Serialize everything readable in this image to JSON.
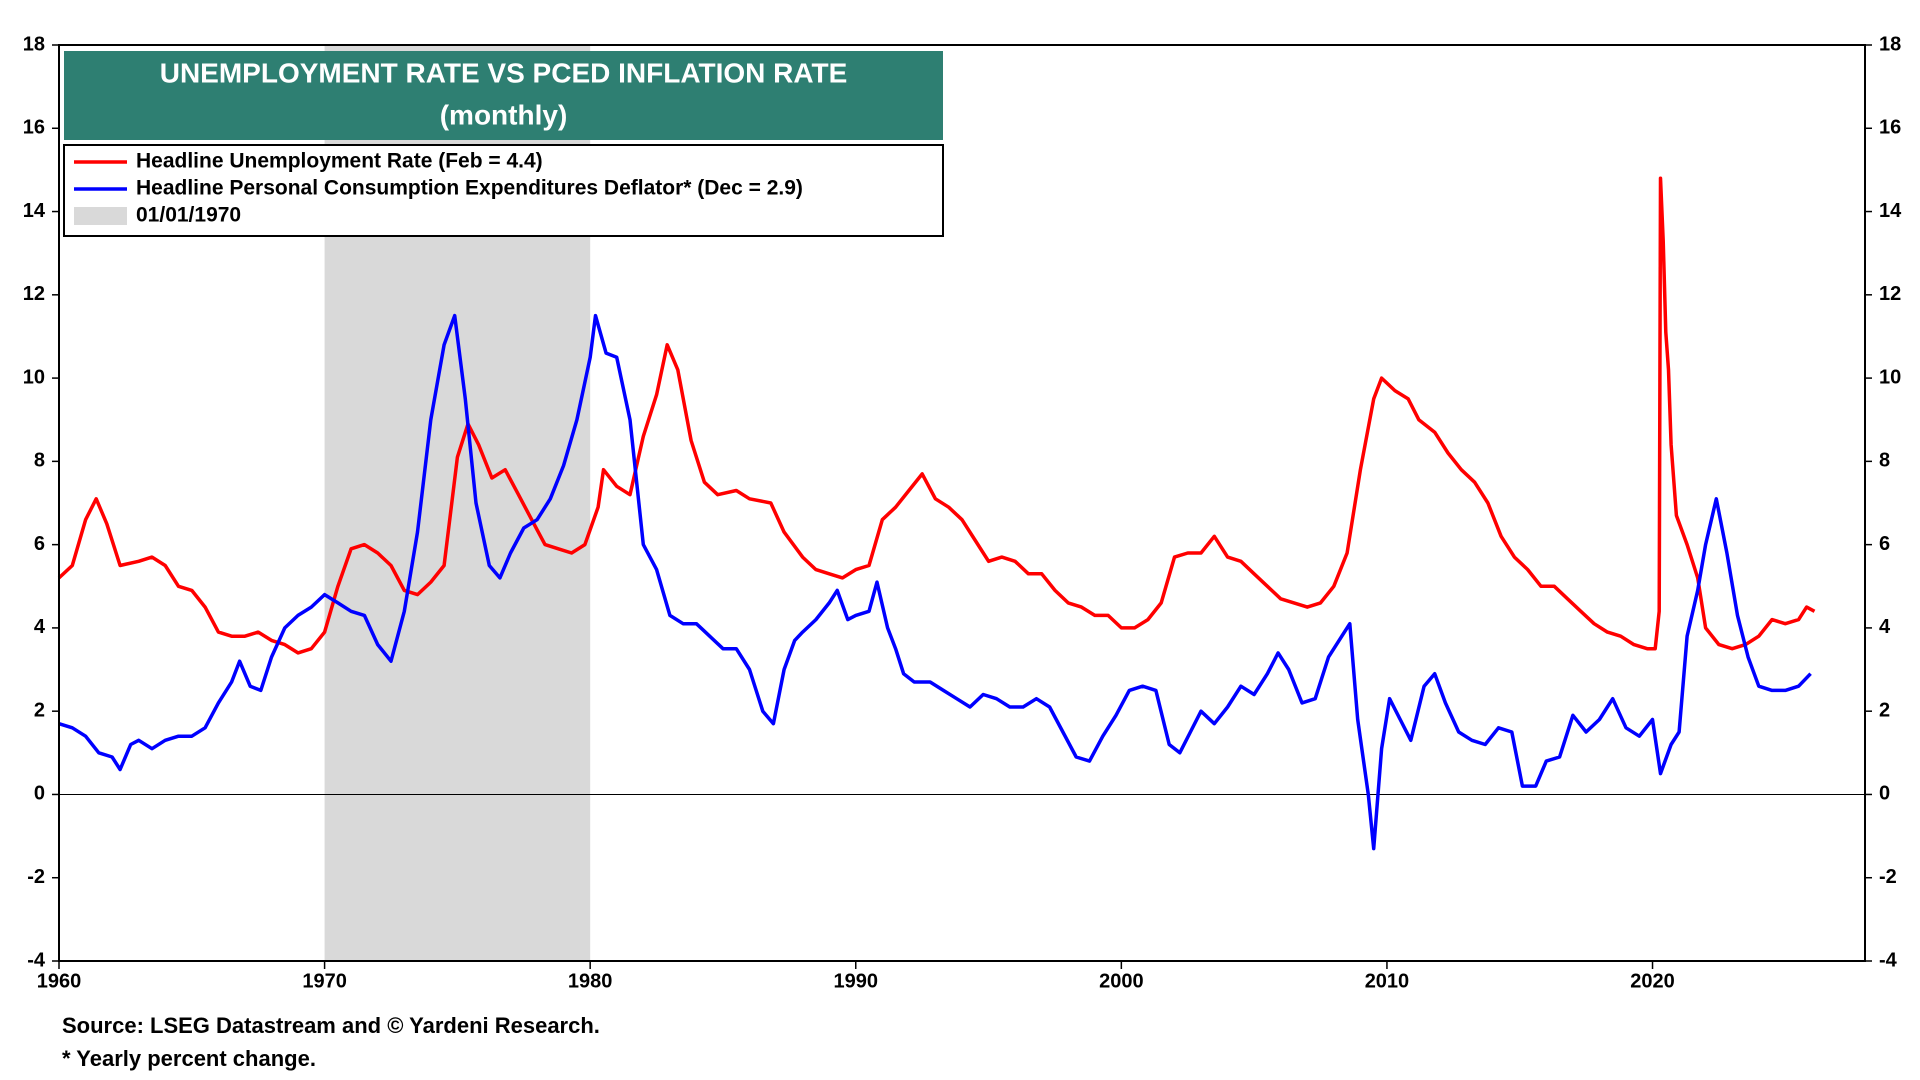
{
  "chart_data": {
    "type": "line",
    "title": "UNEMPLOYMENT RATE VS PCED INFLATION RATE",
    "subtitle": "(monthly)",
    "source": "Source: LSEG Datastream and © Yardeni Research.",
    "note": "* Yearly percent change.",
    "xlim": [
      1960,
      2028
    ],
    "xticks": [
      1960,
      1970,
      1980,
      1990,
      2000,
      2010,
      2020
    ],
    "ylim": [
      -4,
      18
    ],
    "yticks": [
      -4,
      -2,
      0,
      2,
      4,
      6,
      8,
      10,
      12,
      14,
      16,
      18
    ],
    "shaded": {
      "start": 1970,
      "end": 1980,
      "label": "01/01/1970",
      "color": "#d9d9d9"
    },
    "series": [
      {
        "name": "Headline Unemployment Rate (Feb = 4.4)",
        "color": "#ff0000",
        "x": [
          1960,
          1960.5,
          1961,
          1961.4,
          1961.8,
          1962.3,
          1963,
          1963.5,
          1964,
          1964.5,
          1965,
          1965.5,
          1966,
          1966.5,
          1967,
          1967.5,
          1968,
          1968.5,
          1969,
          1969.5,
          1970,
          1970.5,
          1971,
          1971.5,
          1972,
          1972.5,
          1973,
          1973.5,
          1974,
          1974.5,
          1975,
          1975.4,
          1975.8,
          1976.3,
          1976.8,
          1977.3,
          1977.8,
          1978.3,
          1978.8,
          1979.3,
          1979.8,
          1980.3,
          1980.5,
          1981,
          1981.5,
          1982,
          1982.5,
          1982.9,
          1983.3,
          1983.8,
          1984.3,
          1984.8,
          1985.5,
          1986,
          1986.8,
          1987.3,
          1988,
          1988.5,
          1989,
          1989.5,
          1990,
          1990.5,
          1991,
          1991.5,
          1992,
          1992.5,
          1993,
          1993.5,
          1994,
          1994.5,
          1995,
          1995.5,
          1996,
          1996.5,
          1997,
          1997.5,
          1998,
          1998.5,
          1999,
          1999.5,
          2000,
          2000.5,
          2001,
          2001.5,
          2002,
          2002.5,
          2003,
          2003.5,
          2004,
          2004.5,
          2005,
          2005.5,
          2006,
          2006.5,
          2007,
          2007.5,
          2008,
          2008.5,
          2009,
          2009.5,
          2009.8,
          2010.3,
          2010.8,
          2011.2,
          2011.8,
          2012.3,
          2012.8,
          2013.3,
          2013.8,
          2014.3,
          2014.8,
          2015.3,
          2015.8,
          2016.3,
          2016.8,
          2017.3,
          2017.8,
          2018.3,
          2018.8,
          2019.3,
          2019.8,
          2020.1,
          2020.25,
          2020.3,
          2020.4,
          2020.5,
          2020.6,
          2020.7,
          2020.9,
          2021.3,
          2021.7,
          2022,
          2022.5,
          2023,
          2023.5,
          2024,
          2024.5,
          2025,
          2025.5,
          2025.8,
          2026.1
        ],
        "values": [
          5.2,
          5.5,
          6.6,
          7.1,
          6.5,
          5.5,
          5.6,
          5.7,
          5.5,
          5.0,
          4.9,
          4.5,
          3.9,
          3.8,
          3.8,
          3.9,
          3.7,
          3.6,
          3.4,
          3.5,
          3.9,
          5.0,
          5.9,
          6.0,
          5.8,
          5.5,
          4.9,
          4.8,
          5.1,
          5.5,
          8.1,
          8.9,
          8.4,
          7.6,
          7.8,
          7.2,
          6.6,
          6.0,
          5.9,
          5.8,
          6.0,
          6.9,
          7.8,
          7.4,
          7.2,
          8.6,
          9.6,
          10.8,
          10.2,
          8.5,
          7.5,
          7.2,
          7.3,
          7.1,
          7.0,
          6.3,
          5.7,
          5.4,
          5.3,
          5.2,
          5.4,
          5.5,
          6.6,
          6.9,
          7.3,
          7.7,
          7.1,
          6.9,
          6.6,
          6.1,
          5.6,
          5.7,
          5.6,
          5.3,
          5.3,
          4.9,
          4.6,
          4.5,
          4.3,
          4.3,
          4.0,
          4.0,
          4.2,
          4.6,
          5.7,
          5.8,
          5.8,
          6.2,
          5.7,
          5.6,
          5.3,
          5.0,
          4.7,
          4.6,
          4.5,
          4.6,
          5.0,
          5.8,
          7.8,
          9.5,
          10.0,
          9.7,
          9.5,
          9.0,
          8.7,
          8.2,
          7.8,
          7.5,
          7.0,
          6.2,
          5.7,
          5.4,
          5.0,
          5.0,
          4.7,
          4.4,
          4.1,
          3.9,
          3.8,
          3.6,
          3.5,
          3.5,
          4.4,
          14.8,
          13.3,
          11.1,
          10.2,
          8.4,
          6.7,
          6.0,
          5.2,
          4.0,
          3.6,
          3.5,
          3.6,
          3.8,
          4.2,
          4.1,
          4.2,
          4.5,
          4.4
        ]
      },
      {
        "name": "Headline Personal Consumption Expenditures Deflator* (Dec = 2.9)",
        "color": "#0000ff",
        "x": [
          1960,
          1960.5,
          1961,
          1961.5,
          1962,
          1962.3,
          1962.7,
          1963,
          1963.5,
          1964,
          1964.5,
          1965,
          1965.5,
          1966,
          1966.5,
          1966.8,
          1967.2,
          1967.6,
          1968,
          1968.5,
          1969,
          1969.5,
          1970,
          1970.5,
          1971,
          1971.5,
          1972,
          1972.5,
          1973,
          1973.5,
          1974,
          1974.5,
          1974.9,
          1975.3,
          1975.7,
          1976.2,
          1976.6,
          1977,
          1977.5,
          1978,
          1978.5,
          1979,
          1979.5,
          1980,
          1980.2,
          1980.6,
          1981,
          1981.5,
          1982,
          1982.5,
          1983,
          1983.5,
          1984,
          1984.5,
          1985,
          1985.5,
          1986,
          1986.5,
          1986.9,
          1987.3,
          1987.7,
          1988,
          1988.5,
          1989,
          1989.3,
          1989.7,
          1990,
          1990.5,
          1990.8,
          1991.2,
          1991.5,
          1991.8,
          1992.2,
          1992.8,
          1993.3,
          1993.8,
          1994.3,
          1994.8,
          1995.3,
          1995.8,
          1996.3,
          1996.8,
          1997.3,
          1997.8,
          1998.3,
          1998.8,
          1999.3,
          1999.8,
          2000.3,
          2000.8,
          2001.3,
          2001.8,
          2002.2,
          2002.6,
          2003,
          2003.5,
          2004,
          2004.5,
          2005,
          2005.5,
          2005.9,
          2006.3,
          2006.8,
          2007.3,
          2007.8,
          2008.2,
          2008.6,
          2008.9,
          2009.3,
          2009.5,
          2009.8,
          2010.1,
          2010.5,
          2010.9,
          2011.4,
          2011.8,
          2012.2,
          2012.7,
          2013.2,
          2013.7,
          2014.2,
          2014.7,
          2015.1,
          2015.6,
          2016,
          2016.5,
          2017,
          2017.5,
          2018,
          2018.5,
          2019,
          2019.5,
          2020,
          2020.3,
          2020.7,
          2021,
          2021.3,
          2021.7,
          2022,
          2022.4,
          2022.8,
          2023.2,
          2023.6,
          2024,
          2024.5,
          2025,
          2025.5,
          2025.95
        ],
        "values": [
          1.7,
          1.6,
          1.4,
          1.0,
          0.9,
          0.6,
          1.2,
          1.3,
          1.1,
          1.3,
          1.4,
          1.4,
          1.6,
          2.2,
          2.7,
          3.2,
          2.6,
          2.5,
          3.3,
          4.0,
          4.3,
          4.5,
          4.8,
          4.6,
          4.4,
          4.3,
          3.6,
          3.2,
          4.4,
          6.3,
          9.0,
          10.8,
          11.5,
          9.5,
          7.0,
          5.5,
          5.2,
          5.8,
          6.4,
          6.6,
          7.1,
          7.9,
          9.0,
          10.5,
          11.5,
          10.6,
          10.5,
          9.0,
          6.0,
          5.4,
          4.3,
          4.1,
          4.1,
          3.8,
          3.5,
          3.5,
          3.0,
          2.0,
          1.7,
          3.0,
          3.7,
          3.9,
          4.2,
          4.6,
          4.9,
          4.2,
          4.3,
          4.4,
          5.1,
          4.0,
          3.5,
          2.9,
          2.7,
          2.7,
          2.5,
          2.3,
          2.1,
          2.4,
          2.3,
          2.1,
          2.1,
          2.3,
          2.1,
          1.5,
          0.9,
          0.8,
          1.4,
          1.9,
          2.5,
          2.6,
          2.5,
          1.2,
          1.0,
          1.5,
          2.0,
          1.7,
          2.1,
          2.6,
          2.4,
          2.9,
          3.4,
          3.0,
          2.2,
          2.3,
          3.3,
          3.7,
          4.1,
          1.8,
          0.0,
          -1.3,
          1.1,
          2.3,
          1.8,
          1.3,
          2.6,
          2.9,
          2.2,
          1.5,
          1.3,
          1.2,
          1.6,
          1.5,
          0.2,
          0.2,
          0.8,
          0.9,
          1.9,
          1.5,
          1.8,
          2.3,
          1.6,
          1.4,
          1.8,
          0.5,
          1.2,
          1.5,
          3.8,
          4.9,
          6.0,
          7.1,
          5.8,
          4.3,
          3.3,
          2.6,
          2.5,
          2.5,
          2.6,
          2.9
        ]
      }
    ]
  }
}
